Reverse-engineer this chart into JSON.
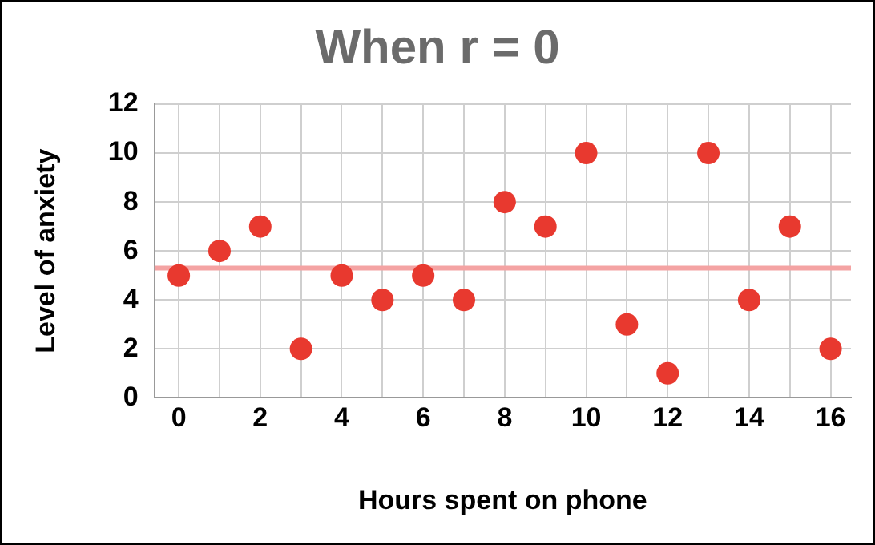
{
  "chart_data": {
    "type": "scatter",
    "title": "When r = 0",
    "xlabel": "Hours spent on phone",
    "ylabel": "Level of anxiety",
    "x": [
      0,
      1,
      2,
      3,
      4,
      5,
      6,
      7,
      8,
      9,
      10,
      11,
      12,
      13,
      14,
      15,
      16
    ],
    "series": [
      {
        "color": "#e8392f",
        "marker": "circle",
        "values": [
          5,
          6,
          7,
          2,
          5,
          4,
          5,
          4,
          8,
          7,
          10,
          3,
          1,
          10,
          4,
          7,
          2
        ]
      },
      {
        "type": "line",
        "color": "#f4a3a3",
        "marker": "none",
        "x": [
          -0.6,
          16.5
        ],
        "values": [
          5.3,
          5.3
        ]
      }
    ],
    "grid": true,
    "legend": false,
    "xlim": [
      -0.6,
      16.5
    ],
    "xticks": [
      0,
      {
        "value": 1,
        "label": null
      },
      2,
      {
        "value": 3,
        "label": null
      },
      4,
      {
        "value": 5,
        "label": null
      },
      6,
      {
        "value": 7,
        "label": null
      },
      8,
      {
        "value": 9,
        "label": null
      },
      10,
      {
        "value": 11,
        "label": null
      },
      12,
      {
        "value": 13,
        "label": null
      },
      14,
      {
        "value": 15,
        "label": null
      },
      16
    ],
    "ylim": [
      0,
      12
    ],
    "yticks": [
      0,
      2,
      4,
      6,
      8,
      10,
      12
    ]
  }
}
